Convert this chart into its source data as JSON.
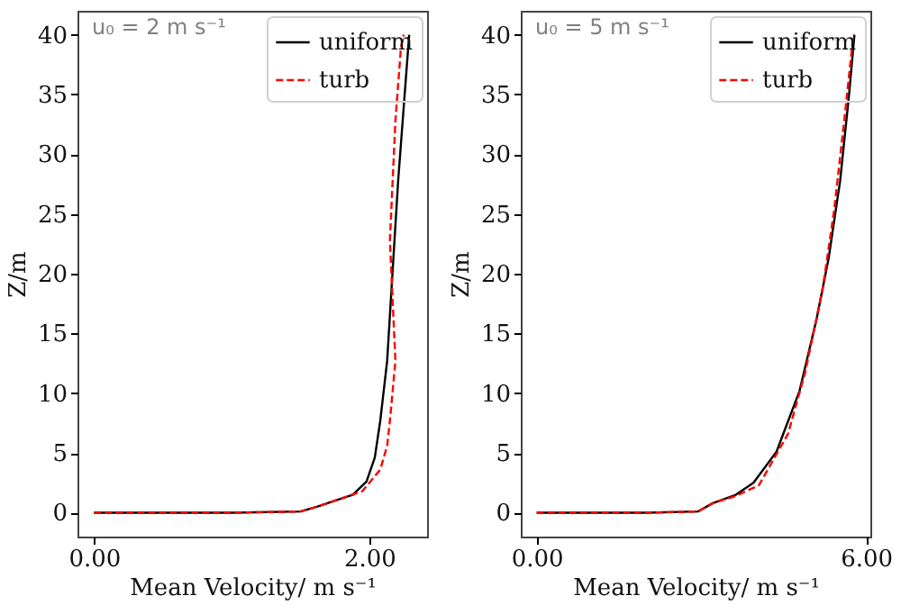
{
  "chart_data": [
    {
      "type": "line",
      "xlabel": "Mean Velocity/ m s⁻¹",
      "ylabel": "Z/m",
      "annotations": [
        "u₀ = 2 m s⁻¹"
      ],
      "legend": "top right",
      "xlim": [
        -0.12,
        2.42
      ],
      "ylim": [
        -2,
        42
      ],
      "xticks": [
        {
          "value": 0,
          "label": "0.00"
        },
        {
          "value": 2,
          "label": "2.00"
        }
      ],
      "yticks": [
        0,
        5,
        10,
        15,
        20,
        25,
        30,
        35,
        40
      ],
      "series": [
        {
          "name": "uniform",
          "color": "#000000",
          "line_style": "solid",
          "x": [
            0,
            0.5,
            1.0,
            1.5,
            1.62,
            1.75,
            1.88,
            1.98,
            2.04,
            2.08,
            2.13,
            2.17,
            2.21,
            2.25,
            2.29
          ],
          "values": [
            0,
            0,
            0,
            0.1,
            0.5,
            1.0,
            1.5,
            2.6,
            4.6,
            7.7,
            12.7,
            20.3,
            27.8,
            33.9,
            40
          ]
        },
        {
          "name": "turb",
          "color": "#ff0000",
          "line_style": "dashed",
          "x": [
            0,
            0.5,
            1.0,
            1.5,
            1.62,
            1.75,
            1.95,
            2.08,
            2.13,
            2.15,
            2.19,
            2.17,
            2.15,
            2.17,
            2.19,
            2.23,
            2.25
          ],
          "values": [
            0,
            0,
            0,
            0.1,
            0.5,
            1.0,
            1.8,
            3.6,
            5.6,
            7.7,
            12.7,
            17.7,
            22.8,
            27.8,
            32.8,
            38.9,
            40
          ]
        }
      ]
    },
    {
      "type": "line",
      "xlabel": "Mean Velocity/ m s⁻¹",
      "ylabel": "Z/m",
      "annotations": [
        "u₀ = 5 m s⁻¹"
      ],
      "legend": "top right",
      "xlim": [
        -0.29,
        6.08
      ],
      "ylim": [
        -2,
        42
      ],
      "xticks": [
        {
          "value": 0,
          "label": "0.00"
        },
        {
          "value": 6,
          "label": "6.00"
        }
      ],
      "yticks": [
        0,
        5,
        10,
        15,
        20,
        25,
        30,
        35,
        40
      ],
      "series": [
        {
          "name": "uniform",
          "color": "#000000",
          "line_style": "solid",
          "x": [
            0,
            1.0,
            2.0,
            2.94,
            3.21,
            3.63,
            3.95,
            4.37,
            4.79,
            5.1,
            5.32,
            5.53,
            5.69,
            5.79
          ],
          "values": [
            0,
            0,
            0,
            0.1,
            0.8,
            1.5,
            2.5,
            5.1,
            10.2,
            16.2,
            21.3,
            27.8,
            34.9,
            40
          ]
        },
        {
          "name": "turb",
          "color": "#ff0000",
          "line_style": "dashed",
          "x": [
            0,
            1.0,
            2.0,
            2.94,
            3.21,
            3.63,
            4.05,
            4.58,
            4.89,
            5.21,
            5.42,
            5.63,
            5.77
          ],
          "values": [
            0,
            0,
            0,
            0.1,
            0.8,
            1.4,
            2.3,
            6.6,
            11.7,
            18.7,
            25.3,
            33.9,
            40
          ]
        }
      ]
    }
  ]
}
